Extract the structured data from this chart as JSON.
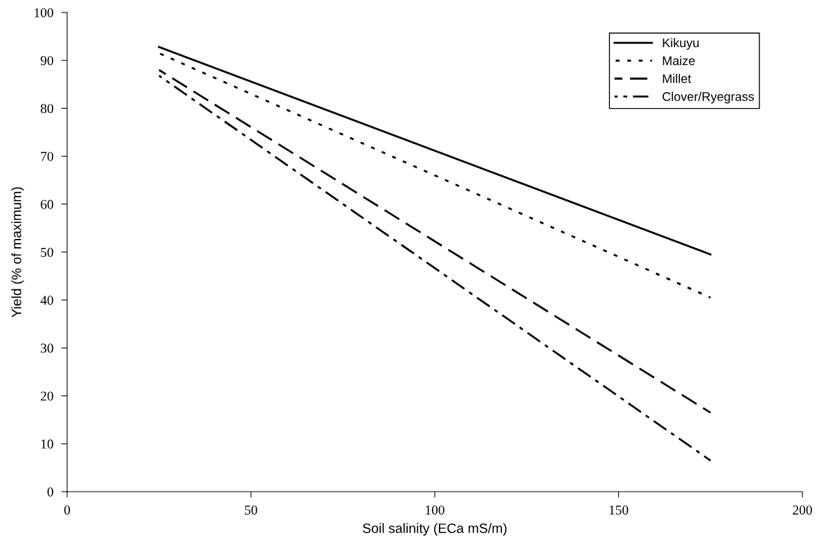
{
  "chart_data": {
    "type": "line",
    "xlabel": "Soil salinity (ECa mS/m)",
    "ylabel": "Yield (% of maximum)",
    "xlim": [
      0,
      200
    ],
    "xticks": [
      0,
      50,
      100,
      150,
      200
    ],
    "ylim": [
      0,
      100
    ],
    "yticks": [
      0,
      10,
      20,
      30,
      40,
      50,
      60,
      70,
      80,
      90,
      100
    ],
    "grid": false,
    "legend": "top right",
    "marker": "none",
    "x": [
      25,
      175
    ],
    "series": [
      {
        "name": "Kikuyu",
        "color": "#000000",
        "line_style": "solid",
        "values": [
          92.8,
          49.5
        ]
      },
      {
        "name": "Maize",
        "color": "#000000",
        "line_style": "dotted",
        "values": [
          91.5,
          40.5
        ]
      },
      {
        "name": "Millet",
        "color": "#000000",
        "line_style": "dashed",
        "values": [
          88,
          16.5
        ]
      },
      {
        "name": "Clover/Ryegrass",
        "color": "#000000",
        "line_style": "dashdot",
        "values": [
          86.8,
          6.5
        ]
      }
    ]
  }
}
